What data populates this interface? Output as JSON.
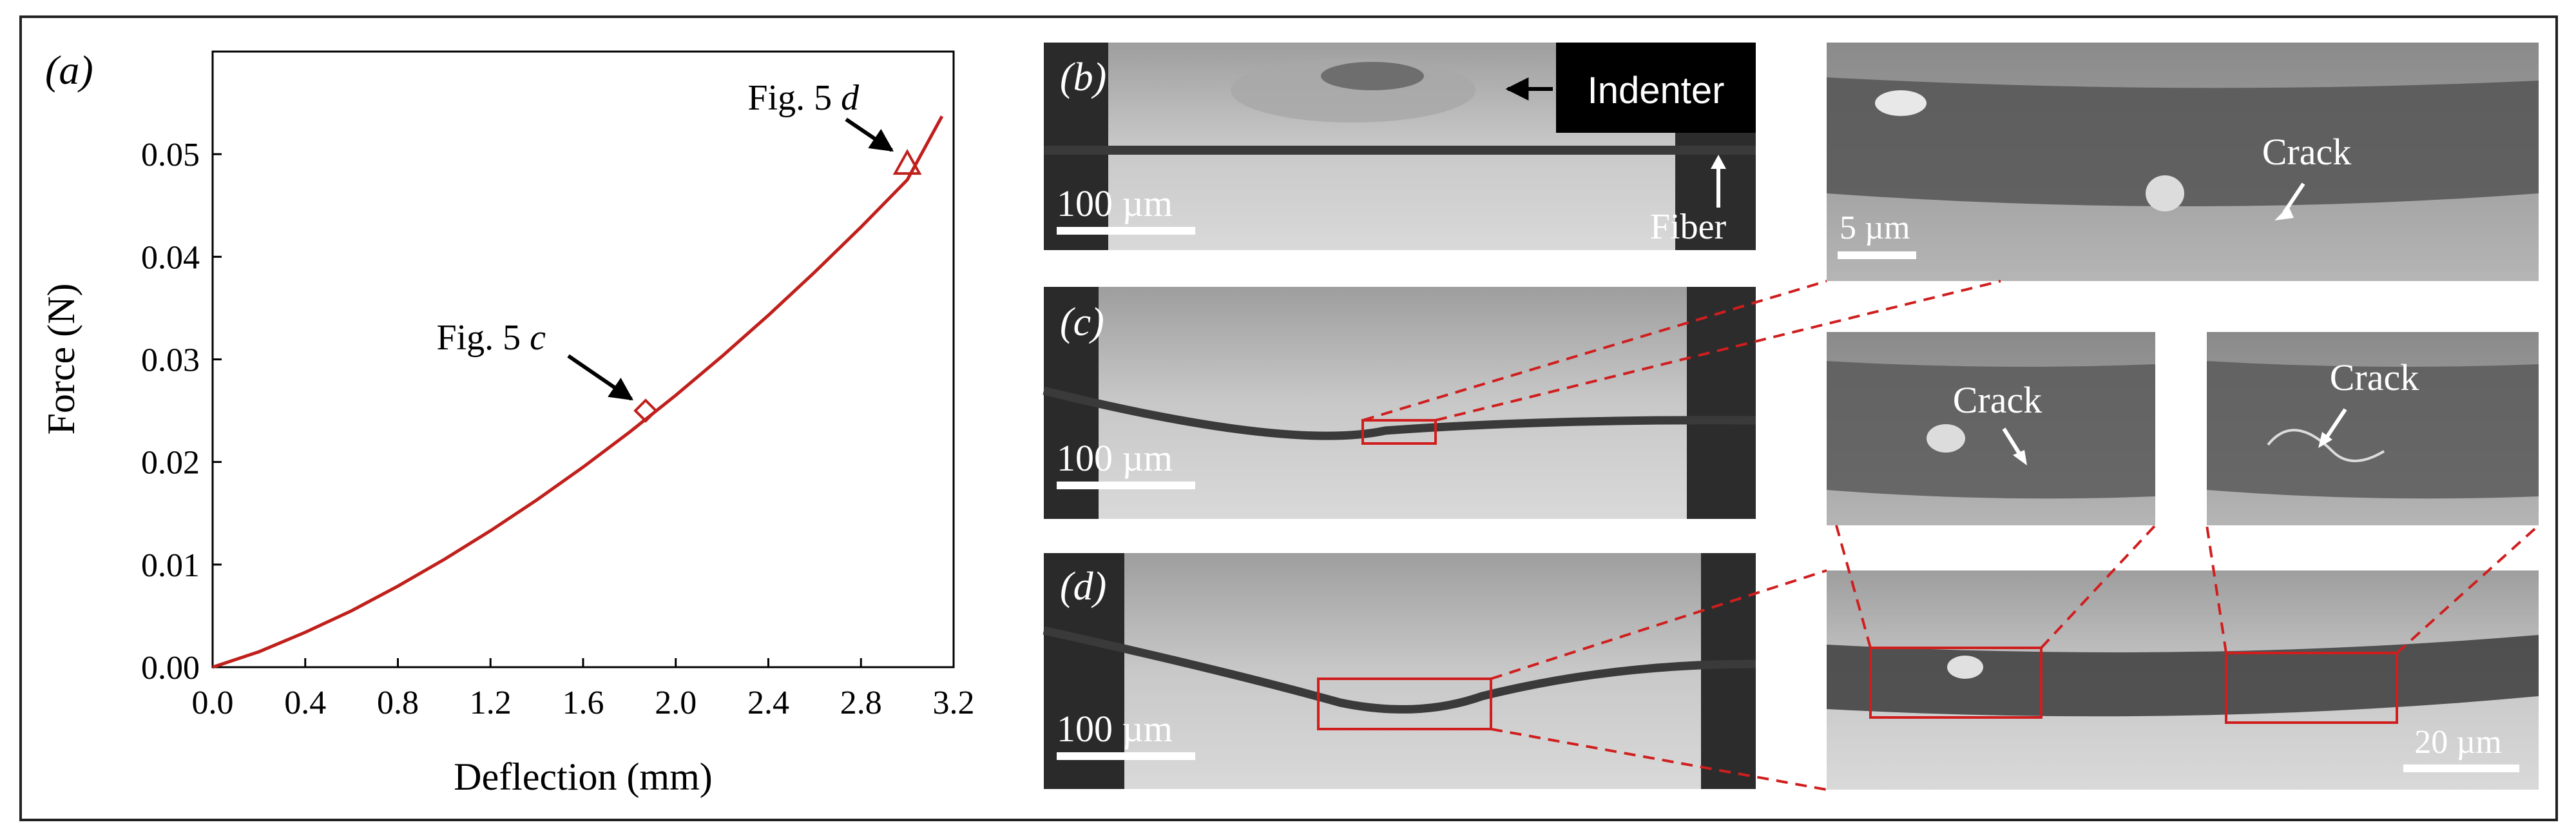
{
  "chart_data": {
    "type": "line",
    "panel_label": "(a)",
    "xlabel": "Deflection (mm)",
    "ylabel": "Force (N)",
    "xlim": [
      0,
      3.2
    ],
    "ylim": [
      0,
      0.06
    ],
    "x_ticks": [
      "0.0",
      "0.4",
      "0.8",
      "1.2",
      "1.6",
      "2.0",
      "2.4",
      "2.8",
      "3.2"
    ],
    "y_ticks": [
      "0.00",
      "0.01",
      "0.02",
      "0.03",
      "0.04",
      "0.05"
    ],
    "series": [
      {
        "color": "#c0201c",
        "x": [
          0,
          0.2,
          0.4,
          0.6,
          0.8,
          1.0,
          1.2,
          1.4,
          1.6,
          1.8,
          2.0,
          2.2,
          2.4,
          2.6,
          2.8,
          3.0,
          3.15
        ],
        "y": [
          0,
          0.0015,
          0.0034,
          0.0055,
          0.0079,
          0.0105,
          0.0133,
          0.0163,
          0.0195,
          0.0229,
          0.0265,
          0.0303,
          0.0343,
          0.0385,
          0.0429,
          0.0475,
          0.0537
        ]
      }
    ],
    "annotations": [
      {
        "prefix": "Fig. 5",
        "suffix": "c",
        "marker": "diamond",
        "x": 1.87,
        "y": 0.025
      },
      {
        "prefix": "Fig. 5",
        "suffix": "d",
        "marker": "triangle",
        "x": 3.0,
        "y": 0.049
      }
    ]
  },
  "panels": {
    "b": {
      "label": "(b)",
      "scale": "100 µm",
      "indenter": "Indenter",
      "fiber": "Fiber"
    },
    "c": {
      "label": "(c)",
      "scale": "100 µm"
    },
    "d": {
      "label": "(d)",
      "scale": "100 µm"
    }
  },
  "zooms": {
    "top": {
      "crack": "Crack",
      "scale": "5 µm"
    },
    "mid_left": {
      "crack": "Crack"
    },
    "mid_right": {
      "crack": "Crack"
    },
    "bottom": {
      "scale": "20 µm"
    }
  },
  "colors": {
    "accent": "#d01e1e",
    "image_bg": "#b9b9b9",
    "frame": "#222222"
  }
}
